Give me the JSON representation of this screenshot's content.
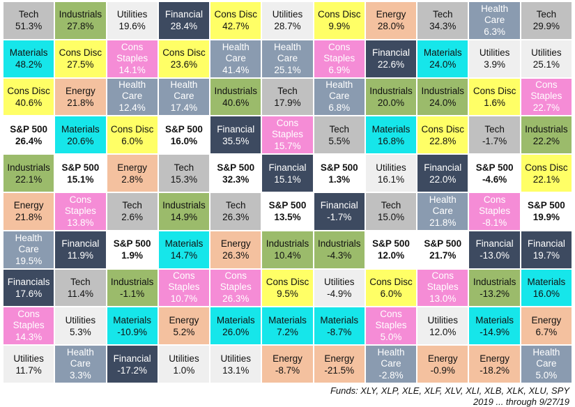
{
  "chart_data": {
    "type": "table",
    "title": "",
    "sectors": {
      "Tech": {
        "bg": "#c0c0c0",
        "fg": "#111111"
      },
      "Industrials": {
        "bg": "#9bbb6b",
        "fg": "#111111"
      },
      "Utilities": {
        "bg": "#efefef",
        "fg": "#111111"
      },
      "Financial": {
        "bg": "#3d4a60",
        "fg": "#ffffff"
      },
      "Cons Disc": {
        "bg": "#ffff66",
        "fg": "#111111"
      },
      "Energy": {
        "bg": "#f4c19f",
        "fg": "#111111"
      },
      "Health Care": {
        "bg": "#8a9bb0",
        "fg": "#ffffff"
      },
      "Materials": {
        "bg": "#16e6ea",
        "fg": "#111111"
      },
      "Cons Staples": {
        "bg": "#f58cd6",
        "fg": "#ffffff"
      },
      "S&P 500": {
        "bg": "#ffffff",
        "fg": "#111111"
      },
      "Financials": {
        "bg": "#3d4a60",
        "fg": "#ffffff"
      }
    },
    "columns": [
      [
        {
          "sector": "Tech",
          "label": "Tech",
          "value": "51.3%"
        },
        {
          "sector": "Materials",
          "label": "Materials",
          "value": "48.2%"
        },
        {
          "sector": "Cons Disc",
          "label": "Cons Disc",
          "value": "40.6%"
        },
        {
          "sector": "S&P 500",
          "label": "S&P 500",
          "value": "26.4%"
        },
        {
          "sector": "Industrials",
          "label": "Industrials",
          "value": "22.1%"
        },
        {
          "sector": "Energy",
          "label": "Energy",
          "value": "21.8%"
        },
        {
          "sector": "Health Care",
          "label": "Health Care",
          "value": "19.5%"
        },
        {
          "sector": "Financials",
          "label": "Financials",
          "value": "17.6%"
        },
        {
          "sector": "Cons Staples",
          "label": "Cons Staples",
          "value": "14.3%"
        },
        {
          "sector": "Utilities",
          "label": "Utilities",
          "value": "11.7%"
        }
      ],
      [
        {
          "sector": "Industrials",
          "label": "Industrials",
          "value": "27.8%"
        },
        {
          "sector": "Cons Disc",
          "label": "Cons Disc",
          "value": "27.5%"
        },
        {
          "sector": "Energy",
          "label": "Energy",
          "value": "21.8%"
        },
        {
          "sector": "Materials",
          "label": "Materials",
          "value": "20.6%"
        },
        {
          "sector": "S&P 500",
          "label": "S&P 500",
          "value": "15.1%"
        },
        {
          "sector": "Cons Staples",
          "label": "Cons Staples",
          "value": "13.8%"
        },
        {
          "sector": "Financial",
          "label": "Financial",
          "value": "11.9%"
        },
        {
          "sector": "Tech",
          "label": "Tech",
          "value": "11.4%"
        },
        {
          "sector": "Utilities",
          "label": "Utilities",
          "value": "5.3%"
        },
        {
          "sector": "Health Care",
          "label": "Health Care",
          "value": "3.3%"
        }
      ],
      [
        {
          "sector": "Utilities",
          "label": "Utilities",
          "value": "19.6%"
        },
        {
          "sector": "Cons Staples",
          "label": "Cons Staples",
          "value": "14.1%"
        },
        {
          "sector": "Health Care",
          "label": "Health Care",
          "value": "12.4%"
        },
        {
          "sector": "Cons Disc",
          "label": "Cons Disc",
          "value": "6.0%"
        },
        {
          "sector": "Energy",
          "label": "Energy",
          "value": "2.8%"
        },
        {
          "sector": "Tech",
          "label": "Tech",
          "value": "2.6%"
        },
        {
          "sector": "S&P 500",
          "label": "S&P 500",
          "value": "1.9%"
        },
        {
          "sector": "Industrials",
          "label": "Industrials",
          "value": "-1.1%"
        },
        {
          "sector": "Materials",
          "label": "Materials",
          "value": "-10.9%"
        },
        {
          "sector": "Financial",
          "label": "Financial",
          "value": "-17.2%"
        }
      ],
      [
        {
          "sector": "Financial",
          "label": "Financial",
          "value": "28.4%"
        },
        {
          "sector": "Cons Disc",
          "label": "Cons Disc",
          "value": "23.6%"
        },
        {
          "sector": "Health Care",
          "label": "Health Care",
          "value": "17.4%"
        },
        {
          "sector": "S&P 500",
          "label": "S&P 500",
          "value": "16.0%"
        },
        {
          "sector": "Tech",
          "label": "Tech",
          "value": "15.3%"
        },
        {
          "sector": "Industrials",
          "label": "Industrials",
          "value": "14.9%"
        },
        {
          "sector": "Materials",
          "label": "Materials",
          "value": "14.7%"
        },
        {
          "sector": "Cons Staples",
          "label": "Cons Staples",
          "value": "10.7%"
        },
        {
          "sector": "Energy",
          "label": "Energy",
          "value": "5.2%"
        },
        {
          "sector": "Utilities",
          "label": "Utilities",
          "value": "1.0%"
        }
      ],
      [
        {
          "sector": "Cons Disc",
          "label": "Cons Disc",
          "value": "42.7%"
        },
        {
          "sector": "Health Care",
          "label": "Health Care",
          "value": "41.4%"
        },
        {
          "sector": "Industrials",
          "label": "Industrials",
          "value": "40.6%"
        },
        {
          "sector": "Financial",
          "label": "Financial",
          "value": "35.5%"
        },
        {
          "sector": "S&P 500",
          "label": "S&P 500",
          "value": "32.3%"
        },
        {
          "sector": "Tech",
          "label": "Tech",
          "value": "26.3%"
        },
        {
          "sector": "Energy",
          "label": "Energy",
          "value": "26.3%"
        },
        {
          "sector": "Cons Staples",
          "label": "Cons Staples",
          "value": "26.3%"
        },
        {
          "sector": "Materials",
          "label": "Materials",
          "value": "26.0%"
        },
        {
          "sector": "Utilities",
          "label": "Utilities",
          "value": "13.1%"
        }
      ],
      [
        {
          "sector": "Utilities",
          "label": "Utilities",
          "value": "28.7%"
        },
        {
          "sector": "Health Care",
          "label": "Health Care",
          "value": "25.1%"
        },
        {
          "sector": "Tech",
          "label": "Tech",
          "value": "17.9%"
        },
        {
          "sector": "Cons Staples",
          "label": "Cons Staples",
          "value": "15.7%"
        },
        {
          "sector": "Financial",
          "label": "Financial",
          "value": "15.1%"
        },
        {
          "sector": "S&P 500",
          "label": "S&P 500",
          "value": "13.5%"
        },
        {
          "sector": "Industrials",
          "label": "Industrials",
          "value": "10.4%"
        },
        {
          "sector": "Cons Disc",
          "label": "Cons Disc",
          "value": "9.5%"
        },
        {
          "sector": "Materials",
          "label": "Materials",
          "value": "7.2%"
        },
        {
          "sector": "Energy",
          "label": "Energy",
          "value": "-8.7%"
        }
      ],
      [
        {
          "sector": "Cons Disc",
          "label": "Cons Disc",
          "value": "9.9%"
        },
        {
          "sector": "Cons Staples",
          "label": "Cons Staples",
          "value": "6.9%"
        },
        {
          "sector": "Health Care",
          "label": "Health Care",
          "value": "6.8%"
        },
        {
          "sector": "Tech",
          "label": "Tech",
          "value": "5.5%"
        },
        {
          "sector": "S&P 500",
          "label": "S&P 500",
          "value": "1.3%"
        },
        {
          "sector": "Financial",
          "label": "Financial",
          "value": "-1.7%"
        },
        {
          "sector": "Industrials",
          "label": "Industrials",
          "value": "-4.3%"
        },
        {
          "sector": "Utilities",
          "label": "Utilities",
          "value": "-4.9%"
        },
        {
          "sector": "Materials",
          "label": "Materials",
          "value": "-8.7%"
        },
        {
          "sector": "Energy",
          "label": "Energy",
          "value": "-21.5%"
        }
      ],
      [
        {
          "sector": "Energy",
          "label": "Energy",
          "value": "28.0%"
        },
        {
          "sector": "Financial",
          "label": "Financial",
          "value": "22.6%"
        },
        {
          "sector": "Industrials",
          "label": "Industrials",
          "value": "20.0%"
        },
        {
          "sector": "Materials",
          "label": "Materials",
          "value": "16.8%"
        },
        {
          "sector": "Utilities",
          "label": "Utilities",
          "value": "16.1%"
        },
        {
          "sector": "Tech",
          "label": "Tech",
          "value": "15.0%"
        },
        {
          "sector": "S&P 500",
          "label": "S&P 500",
          "value": "12.0%"
        },
        {
          "sector": "Cons Disc",
          "label": "Cons Disc",
          "value": "6.0%"
        },
        {
          "sector": "Cons Staples",
          "label": "Cons Staples",
          "value": "5.0%"
        },
        {
          "sector": "Health Care",
          "label": "Health Care",
          "value": "-2.8%"
        }
      ],
      [
        {
          "sector": "Tech",
          "label": "Tech",
          "value": "34.3%"
        },
        {
          "sector": "Materials",
          "label": "Materials",
          "value": "24.0%"
        },
        {
          "sector": "Industrials",
          "label": "Industrials",
          "value": "24.0%"
        },
        {
          "sector": "Cons Disc",
          "label": "Cons Disc",
          "value": "22.8%"
        },
        {
          "sector": "Financial",
          "label": "Financial",
          "value": "22.0%"
        },
        {
          "sector": "Health Care",
          "label": "Health Care",
          "value": "21.8%"
        },
        {
          "sector": "S&P 500",
          "label": "S&P 500",
          "value": "21.7%"
        },
        {
          "sector": "Cons Staples",
          "label": "Cons Staples",
          "value": "13.0%"
        },
        {
          "sector": "Utilities",
          "label": "Utilities",
          "value": "12.0%"
        },
        {
          "sector": "Energy",
          "label": "Energy",
          "value": "-0.9%"
        }
      ],
      [
        {
          "sector": "Health Care",
          "label": "Health Care",
          "value": "6.3%"
        },
        {
          "sector": "Utilities",
          "label": "Utilities",
          "value": "3.9%"
        },
        {
          "sector": "Cons Disc",
          "label": "Cons Disc",
          "value": "1.6%"
        },
        {
          "sector": "Tech",
          "label": "Tech",
          "value": "-1.7%"
        },
        {
          "sector": "S&P 500",
          "label": "S&P 500",
          "value": "-4.6%"
        },
        {
          "sector": "Cons Staples",
          "label": "Cons Staples",
          "value": "-8.1%"
        },
        {
          "sector": "Financial",
          "label": "Financial",
          "value": "-13.0%"
        },
        {
          "sector": "Industrials",
          "label": "Industrials",
          "value": "-13.2%"
        },
        {
          "sector": "Materials",
          "label": "Materials",
          "value": "-14.9%"
        },
        {
          "sector": "Energy",
          "label": "Energy",
          "value": "-18.2%"
        }
      ],
      [
        {
          "sector": "Tech",
          "label": "Tech",
          "value": "29.9%"
        },
        {
          "sector": "Utilities",
          "label": "Utilities",
          "value": "25.1%"
        },
        {
          "sector": "Cons Staples",
          "label": "Cons Staples",
          "value": "22.7%"
        },
        {
          "sector": "Industrials",
          "label": "Industrials",
          "value": "22.2%"
        },
        {
          "sector": "Cons Disc",
          "label": "Cons Disc",
          "value": "22.1%"
        },
        {
          "sector": "S&P 500",
          "label": "S&P 500",
          "value": "19.9%"
        },
        {
          "sector": "Financial",
          "label": "Financial",
          "value": "19.7%"
        },
        {
          "sector": "Materials",
          "label": "Materials",
          "value": "16.0%"
        },
        {
          "sector": "Energy",
          "label": "Energy",
          "value": "6.7%"
        },
        {
          "sector": "Health Care",
          "label": "Health Care",
          "value": "5.0%"
        }
      ]
    ]
  },
  "footer": {
    "funds": "Funds:  XLY, XLP, XLE, XLF, XLV, XLI, XLB, XLK, XLU, SPY",
    "note": "2019 ... through 9/27/19"
  }
}
